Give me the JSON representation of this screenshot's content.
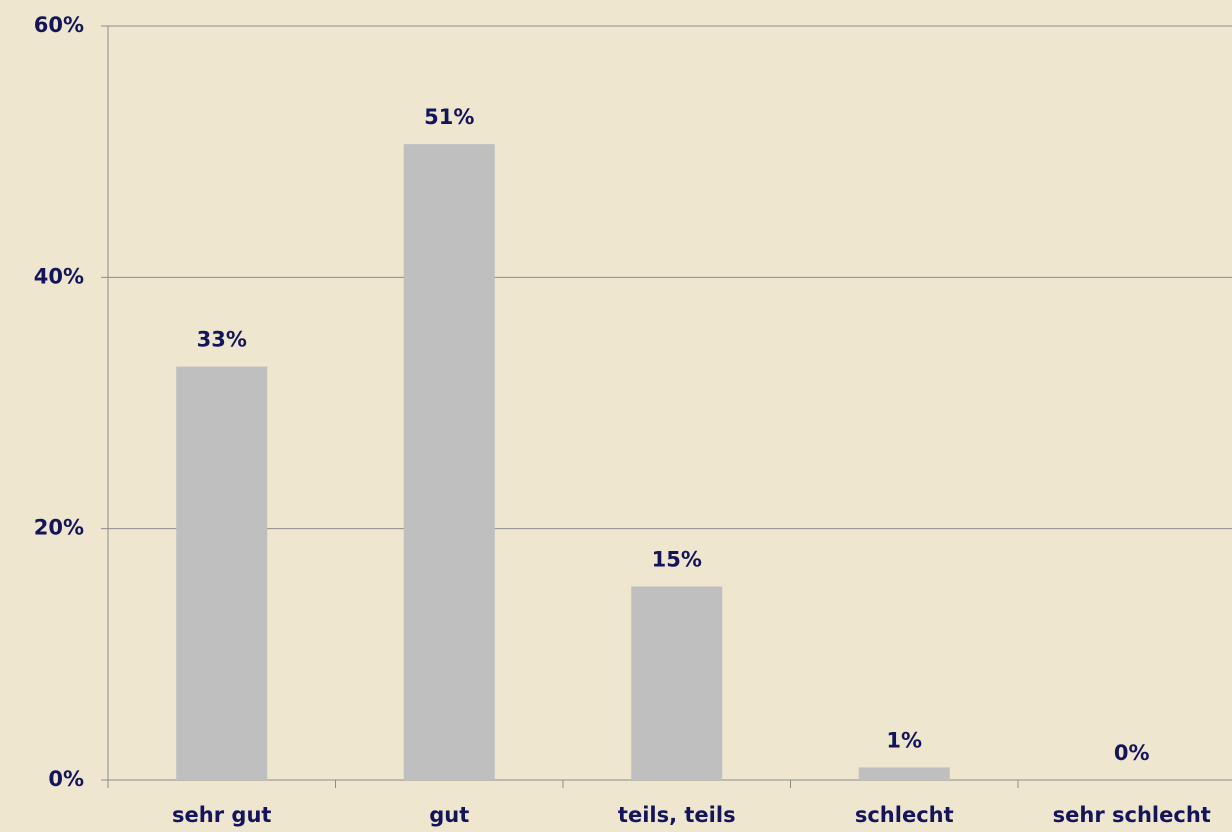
{
  "chart_data": {
    "type": "bar",
    "categories": [
      "sehr gut",
      "gut",
      "teils, teils",
      "schlecht",
      "sehr schlecht"
    ],
    "values": [
      32.9,
      50.6,
      15.4,
      1.0,
      0
    ],
    "value_labels": [
      "33%",
      "51%",
      "15%",
      "1%",
      "0%"
    ],
    "color": "#bfbfbf",
    "ylim": [
      0,
      60
    ],
    "yticks": [
      {
        "value": 0,
        "label": "0%"
      },
      {
        "value": 20,
        "label": "20%"
      },
      {
        "value": 40,
        "label": "40%"
      },
      {
        "value": 60,
        "label": "60%"
      }
    ],
    "grid": true
  }
}
